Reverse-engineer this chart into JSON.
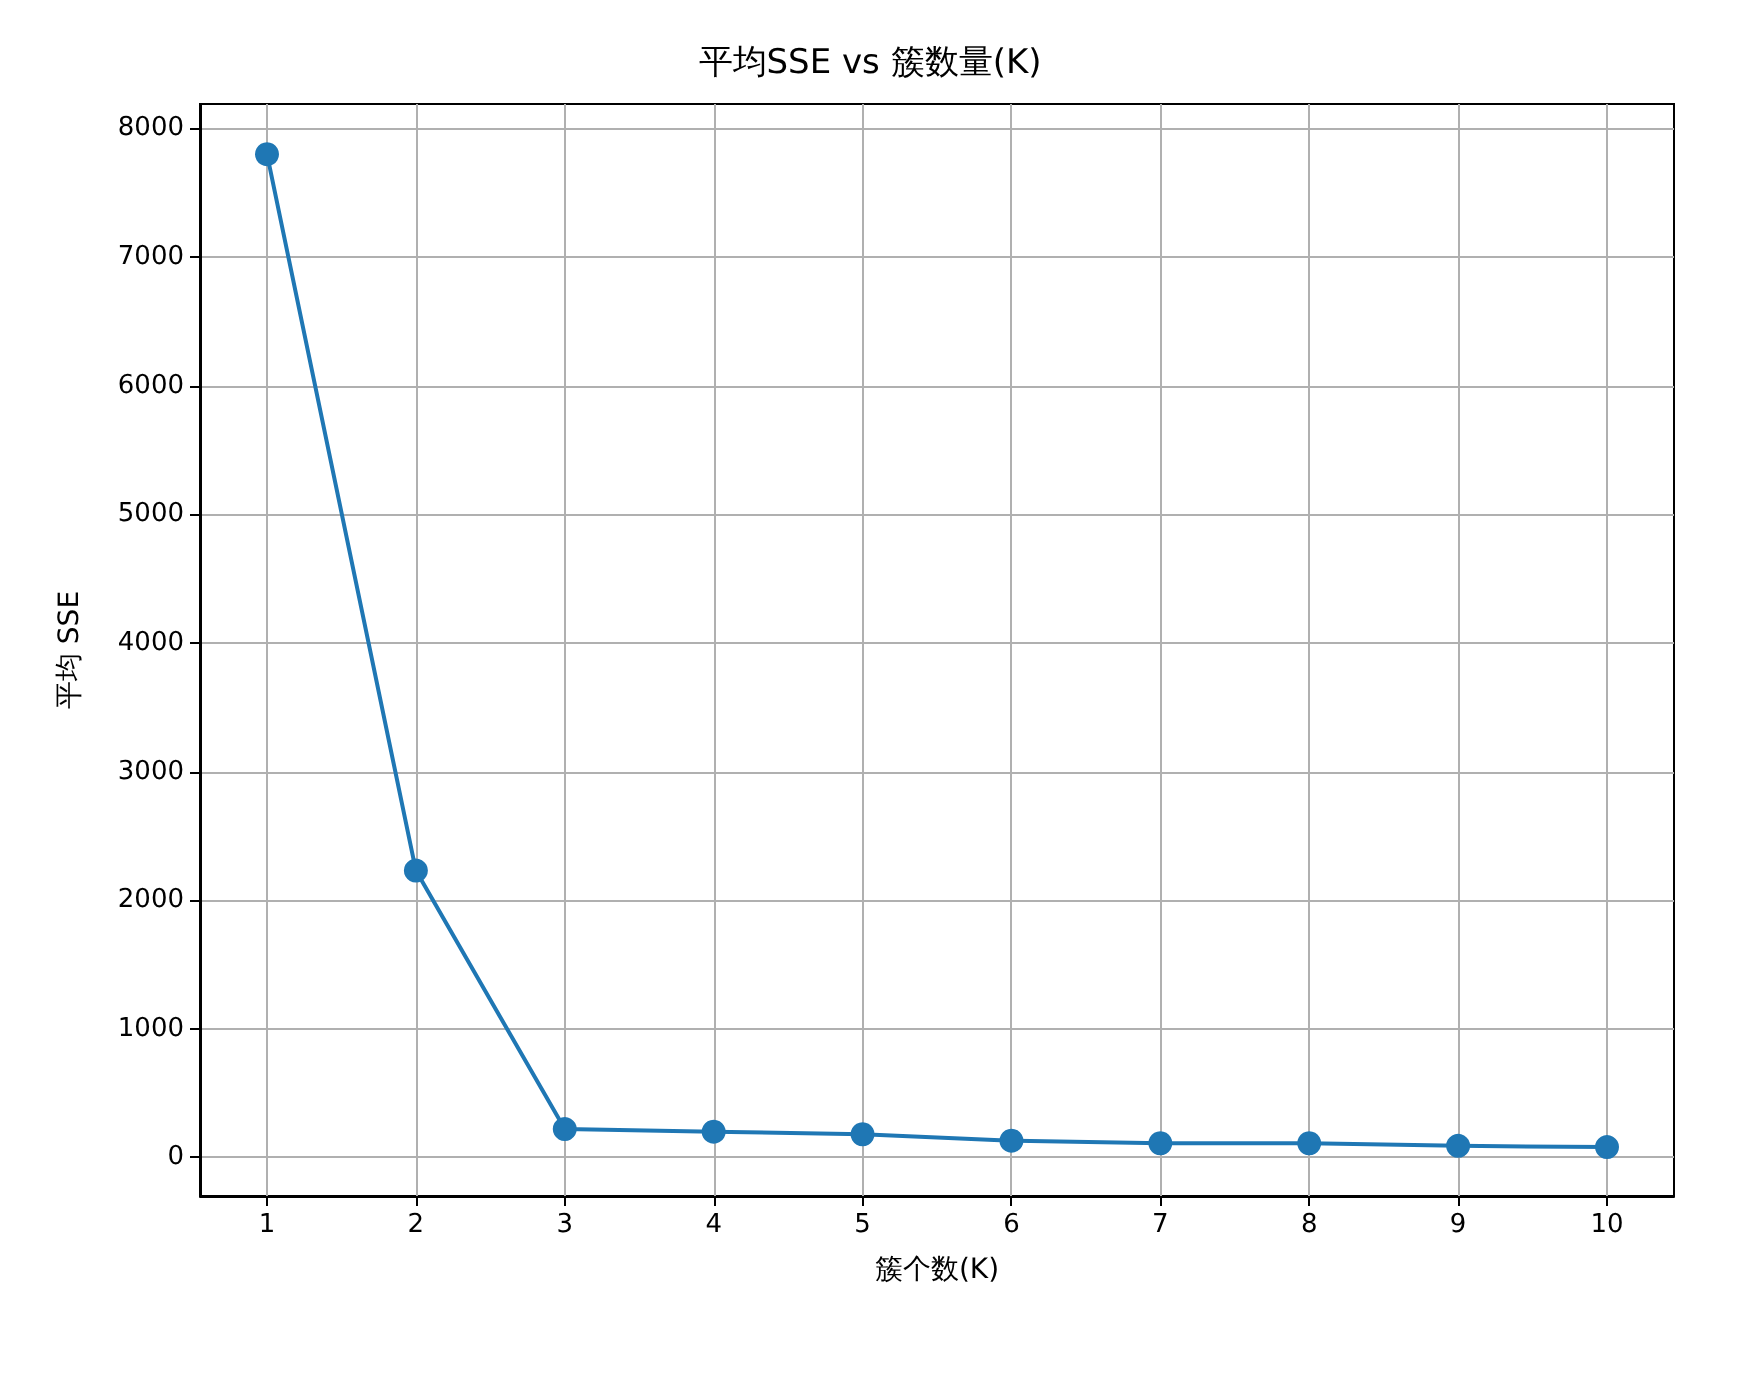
{
  "chart_data": {
    "type": "line",
    "title": "平均SSE vs 簇数量(K)",
    "xlabel": "簇个数(K)",
    "ylabel": "平均 SSE",
    "x": [
      1,
      2,
      3,
      4,
      5,
      6,
      7,
      8,
      9,
      10
    ],
    "series": [
      {
        "color": "#1f77b4",
        "values": [
          7800,
          2230,
          220,
          200,
          180,
          130,
          110,
          110,
          90,
          80
        ]
      }
    ],
    "xlim": [
      0.55,
      10.45
    ],
    "xticks": [
      1,
      2,
      3,
      4,
      5,
      6,
      7,
      8,
      9,
      10
    ],
    "ylim": [
      -300,
      8190
    ],
    "yticks": [
      0,
      1000,
      2000,
      3000,
      4000,
      5000,
      6000,
      7000,
      8000
    ],
    "grid": true,
    "marker": "circle",
    "line_style": "solid"
  }
}
